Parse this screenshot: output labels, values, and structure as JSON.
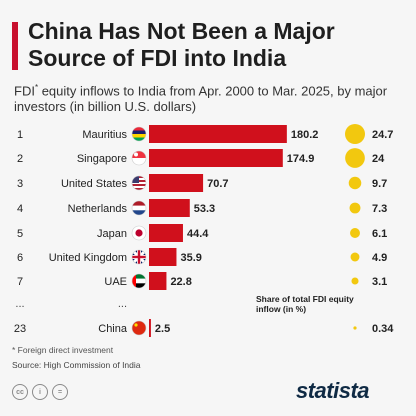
{
  "title": "China Has Not Been a Major Source of FDI into India",
  "subtitle_lead": "FDI",
  "subtitle_marker": "*",
  "subtitle_rest": " equity inflows to India from Apr. 2000 to Mar. 2025, by major investors (in billion U.S. dollars)",
  "share_label": "Share of total FDI equity inflow (in %)",
  "footnote": "* Foreign direct investment",
  "source": "Source: High Commission of India",
  "ellipsis": "...",
  "footer_icons": [
    "cc-icon",
    "person-icon",
    "equals-icon"
  ],
  "logo_text": "statista",
  "colors": {
    "accent": "#c8102e",
    "bar": "#d0101c",
    "bubble": "#f2c80f"
  },
  "chart_data": {
    "type": "bar",
    "orientation": "horizontal",
    "title": "China Has Not Been a Major Source of FDI into India",
    "xlim": [
      0,
      200
    ],
    "ranks": [
      "1",
      "2",
      "3",
      "4",
      "5",
      "6",
      "7",
      "23"
    ],
    "categories": [
      "Mauritius",
      "Singapore",
      "United States",
      "Netherlands",
      "Japan",
      "United Kingdom",
      "UAE",
      "China"
    ],
    "values": [
      180.2,
      174.9,
      70.7,
      53.3,
      44.4,
      35.9,
      22.8,
      2.5
    ],
    "share_percent": [
      24.7,
      24.0,
      9.7,
      7.3,
      6.1,
      4.9,
      3.1,
      0.34
    ],
    "flag_icons": [
      "mauritius-flag-icon",
      "singapore-flag-icon",
      "united-states-flag-icon",
      "netherlands-flag-icon",
      "japan-flag-icon",
      "united-kingdom-flag-icon",
      "uae-flag-icon",
      "china-flag-icon"
    ]
  }
}
